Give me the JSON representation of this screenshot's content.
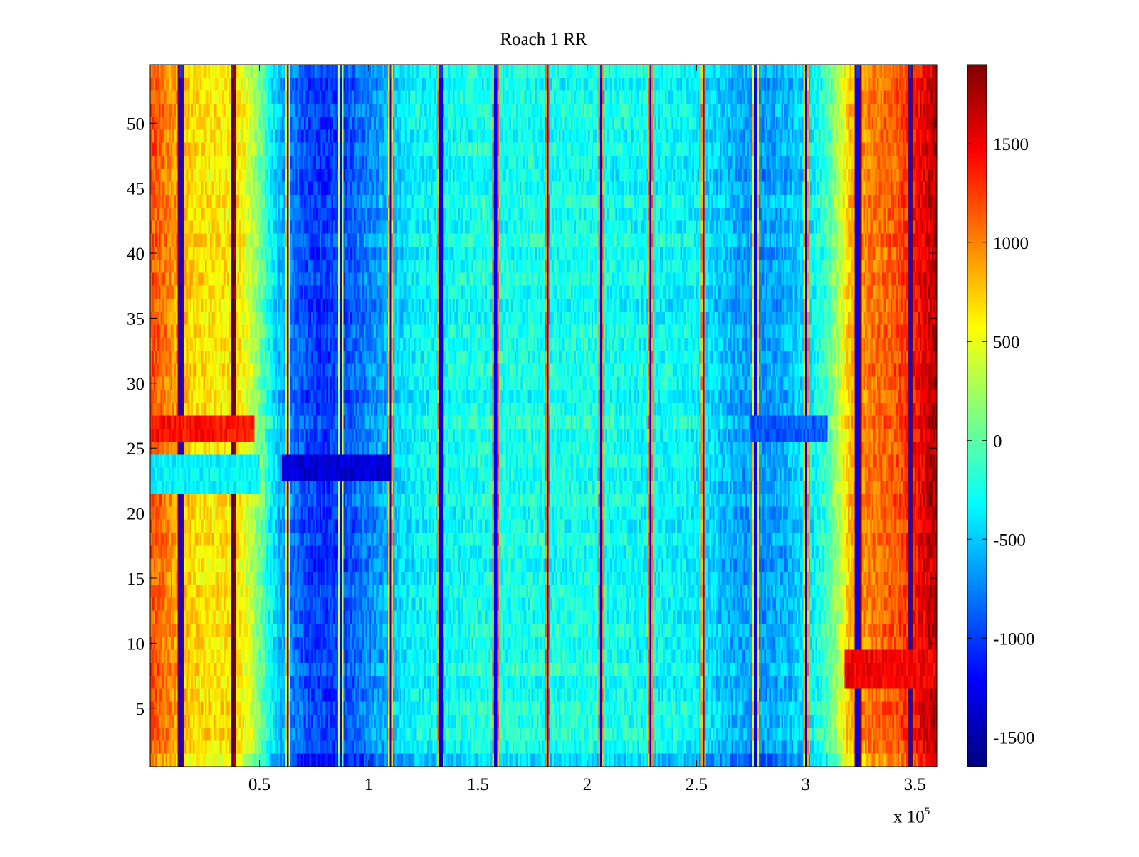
{
  "chart_data": {
    "type": "heatmap",
    "title": "Roach 1 RR",
    "xlabel": "",
    "ylabel": "",
    "x_multiplier_label": "x 10",
    "x_multiplier_exponent": "5",
    "xlim": [
      0,
      360000
    ],
    "ylim": [
      0.5,
      54.5
    ],
    "x_ticks": [
      50000,
      100000,
      150000,
      200000,
      250000,
      300000,
      350000
    ],
    "x_tick_labels": [
      "0.5",
      "1",
      "1.5",
      "2",
      "2.5",
      "3",
      "3.5"
    ],
    "y_ticks": [
      5,
      10,
      15,
      20,
      25,
      30,
      35,
      40,
      45,
      50
    ],
    "y_tick_labels": [
      "5",
      "10",
      "15",
      "20",
      "25",
      "30",
      "35",
      "40",
      "45",
      "50"
    ],
    "colormap": "jet",
    "clim": [
      -1650,
      1900
    ],
    "colorbar_ticks": [
      -1500,
      -1000,
      -500,
      0,
      500,
      1000,
      1500
    ],
    "colorbar_tick_labels": [
      "-1500",
      "-1000",
      "-500",
      "0",
      "500",
      "1000",
      "1500"
    ],
    "rows": 54,
    "x_profile": {
      "x": [
        0,
        5000,
        10000,
        20000,
        30000,
        40000,
        45000,
        50000,
        55000,
        60000,
        70000,
        80000,
        90000,
        100000,
        110000,
        120000,
        150000,
        200000,
        250000,
        260000,
        270000,
        280000,
        290000,
        300000,
        310000,
        315000,
        320000,
        330000,
        340000,
        345000,
        350000,
        355000,
        360000
      ],
      "values": [
        1250,
        1150,
        1000,
        750,
        700,
        700,
        500,
        150,
        -200,
        -500,
        -850,
        -950,
        -850,
        -650,
        -450,
        -250,
        -150,
        -150,
        -250,
        -400,
        -550,
        -600,
        -500,
        -350,
        0,
        350,
        850,
        1100,
        1200,
        1300,
        1450,
        1650,
        1800
      ]
    },
    "vertical_stripes_x": [
      14000,
      38000,
      63000,
      87000,
      110000,
      133000,
      158000,
      182000,
      206000,
      229000,
      253000,
      277000,
      300000,
      324000,
      348000
    ],
    "row_band_centers": [
      3,
      5,
      8,
      11,
      14,
      18,
      21,
      24,
      27,
      31,
      34,
      38,
      41,
      44,
      48,
      51
    ],
    "anomalies": [
      {
        "rows": [
          23,
          24
        ],
        "x_range": [
          60000,
          110000
        ],
        "value": -1350
      },
      {
        "rows": [
          22,
          23,
          24
        ],
        "x_range": [
          0,
          50000
        ],
        "value": -350
      },
      {
        "rows": [
          26,
          27
        ],
        "x_range": [
          0,
          48000
        ],
        "value": 1400
      },
      {
        "rows": [
          7,
          8,
          9
        ],
        "x_range": [
          318000,
          360000
        ],
        "value": 1500
      },
      {
        "rows": [
          26,
          27
        ],
        "x_range": [
          275000,
          310000
        ],
        "value": -900
      }
    ]
  }
}
